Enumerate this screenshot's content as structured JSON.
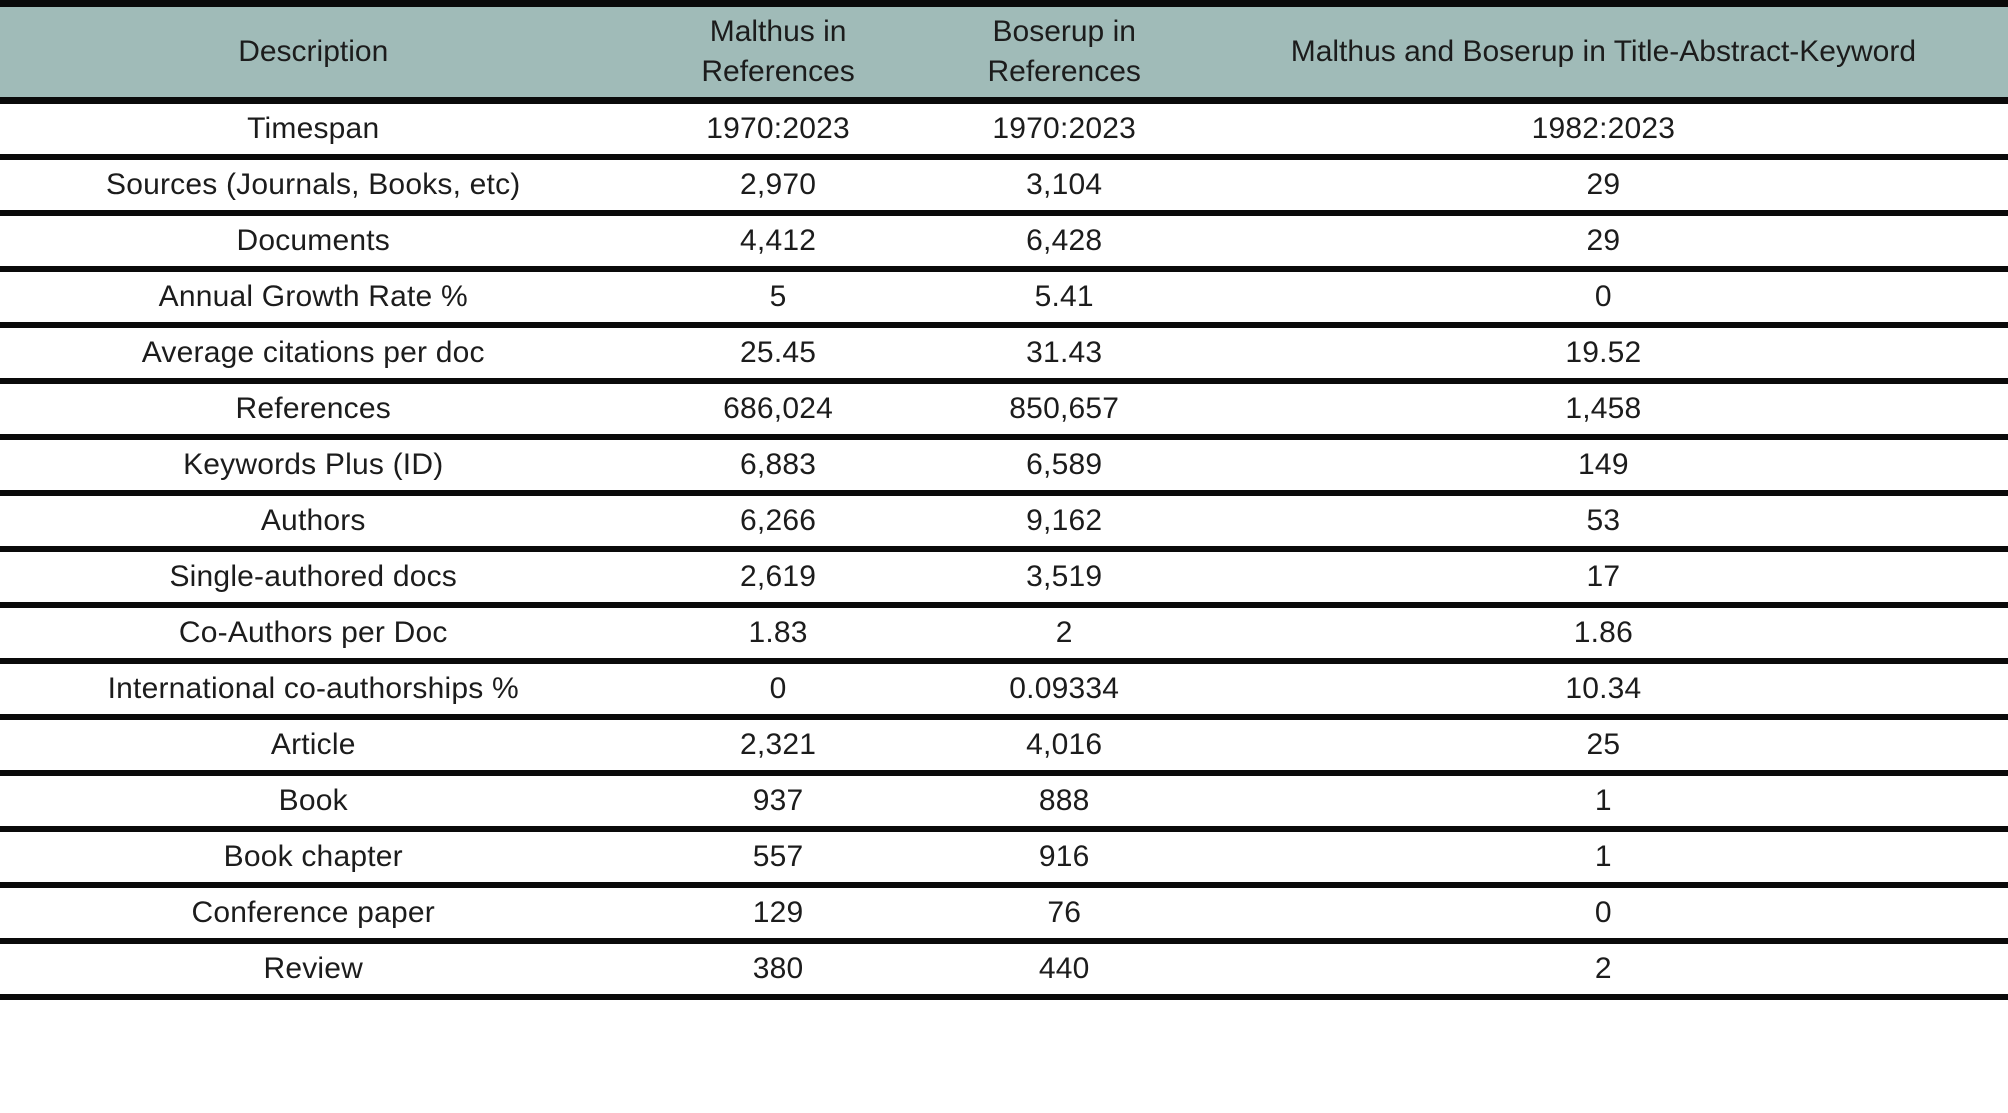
{
  "colors": {
    "header_bg": "#a0bbb8",
    "rule": "#0a0a0a",
    "text": "#1c1c1c",
    "row_bg": "#ffffff"
  },
  "table": {
    "columns": [
      {
        "label": "Description"
      },
      {
        "label": "Malthus in\nReferences"
      },
      {
        "label": "Boserup in\nReferences"
      },
      {
        "label": "Malthus and Boserup in Title-Abstract-Keyword"
      }
    ],
    "rows": [
      {
        "label": "Timespan",
        "cells": [
          "1970:2023",
          "1970:2023",
          "1982:2023"
        ]
      },
      {
        "label": "Sources (Journals, Books, etc)",
        "cells": [
          "2,970",
          "3,104",
          "29"
        ]
      },
      {
        "label": "Documents",
        "cells": [
          "4,412",
          "6,428",
          "29"
        ]
      },
      {
        "label": "Annual Growth Rate %",
        "cells": [
          "5",
          "5.41",
          "0"
        ]
      },
      {
        "label": "Average citations per doc",
        "cells": [
          "25.45",
          "31.43",
          "19.52"
        ]
      },
      {
        "label": "References",
        "cells": [
          "686,024",
          "850,657",
          "1,458"
        ]
      },
      {
        "label": "Keywords Plus (ID)",
        "cells": [
          "6,883",
          "6,589",
          "149"
        ]
      },
      {
        "label": "Authors",
        "cells": [
          "6,266",
          "9,162",
          "53"
        ]
      },
      {
        "label": "Single-authored docs",
        "cells": [
          "2,619",
          "3,519",
          "17"
        ]
      },
      {
        "label": "Co-Authors per Doc",
        "cells": [
          "1.83",
          "2",
          "1.86"
        ]
      },
      {
        "label": "International co-authorships %",
        "cells": [
          "0",
          "0.09334",
          "10.34"
        ]
      },
      {
        "label": "Article",
        "cells": [
          "2,321",
          "4,016",
          "25"
        ]
      },
      {
        "label": "Book",
        "cells": [
          "937",
          "888",
          "1"
        ]
      },
      {
        "label": "Book chapter",
        "cells": [
          "557",
          "916",
          "1"
        ]
      },
      {
        "label": "Conference paper",
        "cells": [
          "129",
          "76",
          "0"
        ]
      },
      {
        "label": "Review",
        "cells": [
          "380",
          "440",
          "2"
        ]
      }
    ]
  }
}
